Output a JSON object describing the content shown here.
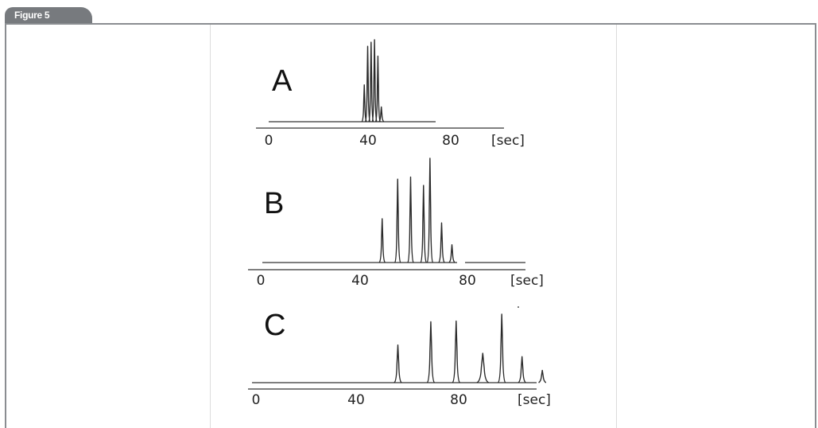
{
  "figure": {
    "label": "Figure 5"
  },
  "chart_data": [
    {
      "type": "line",
      "panel_label": "A",
      "x_tick_labels": [
        "0",
        "40",
        "80"
      ],
      "x_unit": "[sec]",
      "xlim": [
        0,
        100
      ],
      "peaks_x": [
        42,
        43.5,
        45,
        46.5,
        48,
        49.5
      ],
      "peaks_height": [
        0.45,
        0.92,
        0.97,
        1.0,
        0.8,
        0.18
      ]
    },
    {
      "type": "line",
      "panel_label": "B",
      "x_tick_labels": [
        "0",
        "40",
        "80"
      ],
      "x_unit": "[sec]",
      "xlim": [
        0,
        105
      ],
      "peaks_x": [
        47,
        53,
        58,
        63,
        65.5,
        70,
        74
      ],
      "peaks_height": [
        0.42,
        0.8,
        0.82,
        0.74,
        1.0,
        0.38,
        0.17
      ]
    },
    {
      "type": "line",
      "panel_label": "C",
      "x_tick_labels": [
        "0",
        "40",
        "80"
      ],
      "x_unit": "[sec]",
      "xlim": [
        0,
        122
      ],
      "peaks_x": [
        56,
        69,
        79,
        89.5,
        97,
        105,
        113
      ],
      "peaks_height": [
        0.55,
        0.89,
        0.9,
        0.43,
        1.0,
        0.38,
        0.18
      ]
    }
  ]
}
